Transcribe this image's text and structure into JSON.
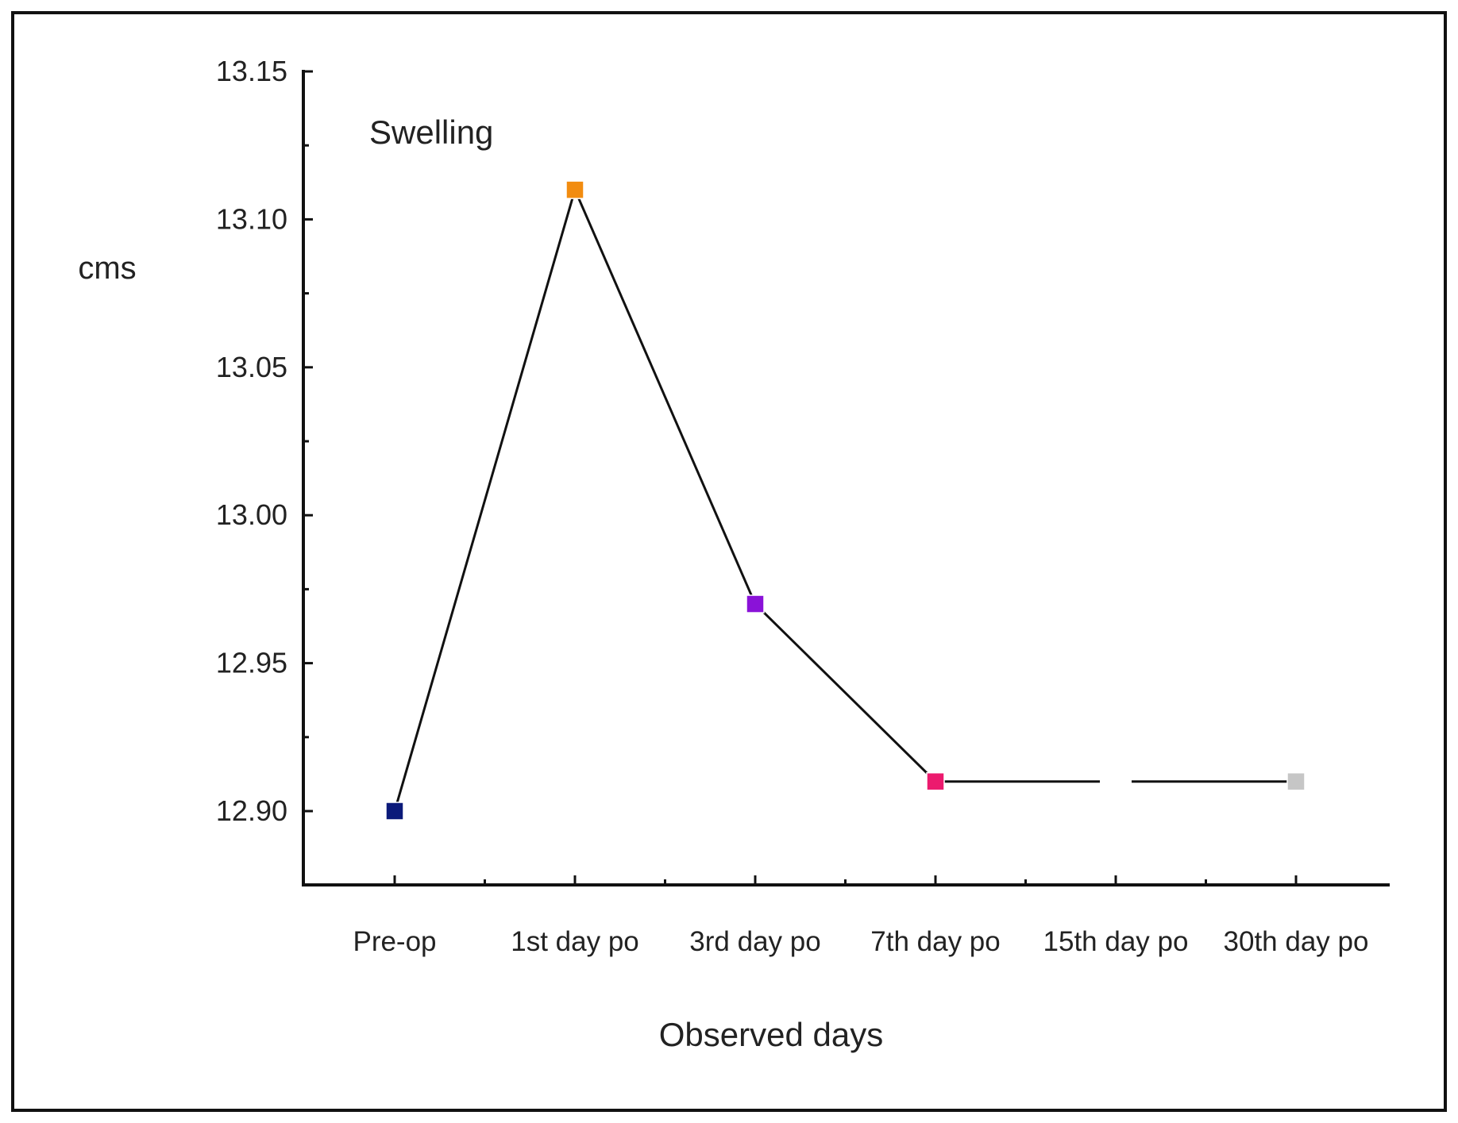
{
  "chart_data": {
    "type": "line",
    "title": "Swelling",
    "xlabel": "Observed days",
    "ylabel": "cms",
    "categories": [
      "Pre-op",
      "1st day po",
      "3rd day po",
      "7th day po",
      "15th day po",
      "30th day po"
    ],
    "yticks": [
      "13.15",
      "13.10",
      "13.05",
      "13.00",
      "12.95",
      "12.90"
    ],
    "ylim": [
      12.875,
      13.15
    ],
    "series": [
      {
        "name": "Swelling",
        "values": [
          12.9,
          13.11,
          12.97,
          12.91,
          null,
          12.91
        ],
        "marker_colors": [
          "#0b1a7a",
          "#f28c10",
          "#8a12d8",
          "#ec1a6e",
          null,
          "#c6c6c6"
        ]
      }
    ],
    "gap_line_value": 12.91,
    "grid": false,
    "legend": "none"
  }
}
